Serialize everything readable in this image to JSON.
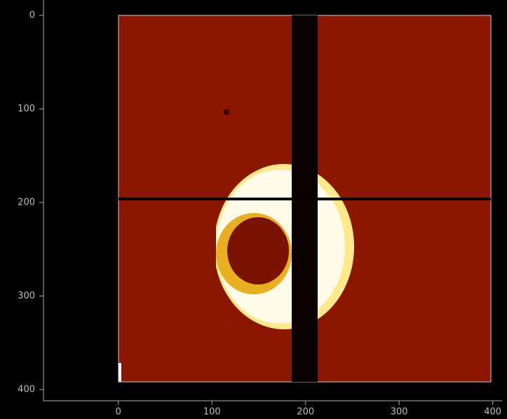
{
  "chart_data": {
    "type": "image",
    "xlim": [
      -80,
      410
    ],
    "ylim": [
      -16,
      412
    ],
    "y_inverted": true,
    "xticks": [
      0,
      100,
      200,
      300,
      400
    ],
    "yticks": [
      0,
      100,
      200,
      300,
      400
    ]
  }
}
